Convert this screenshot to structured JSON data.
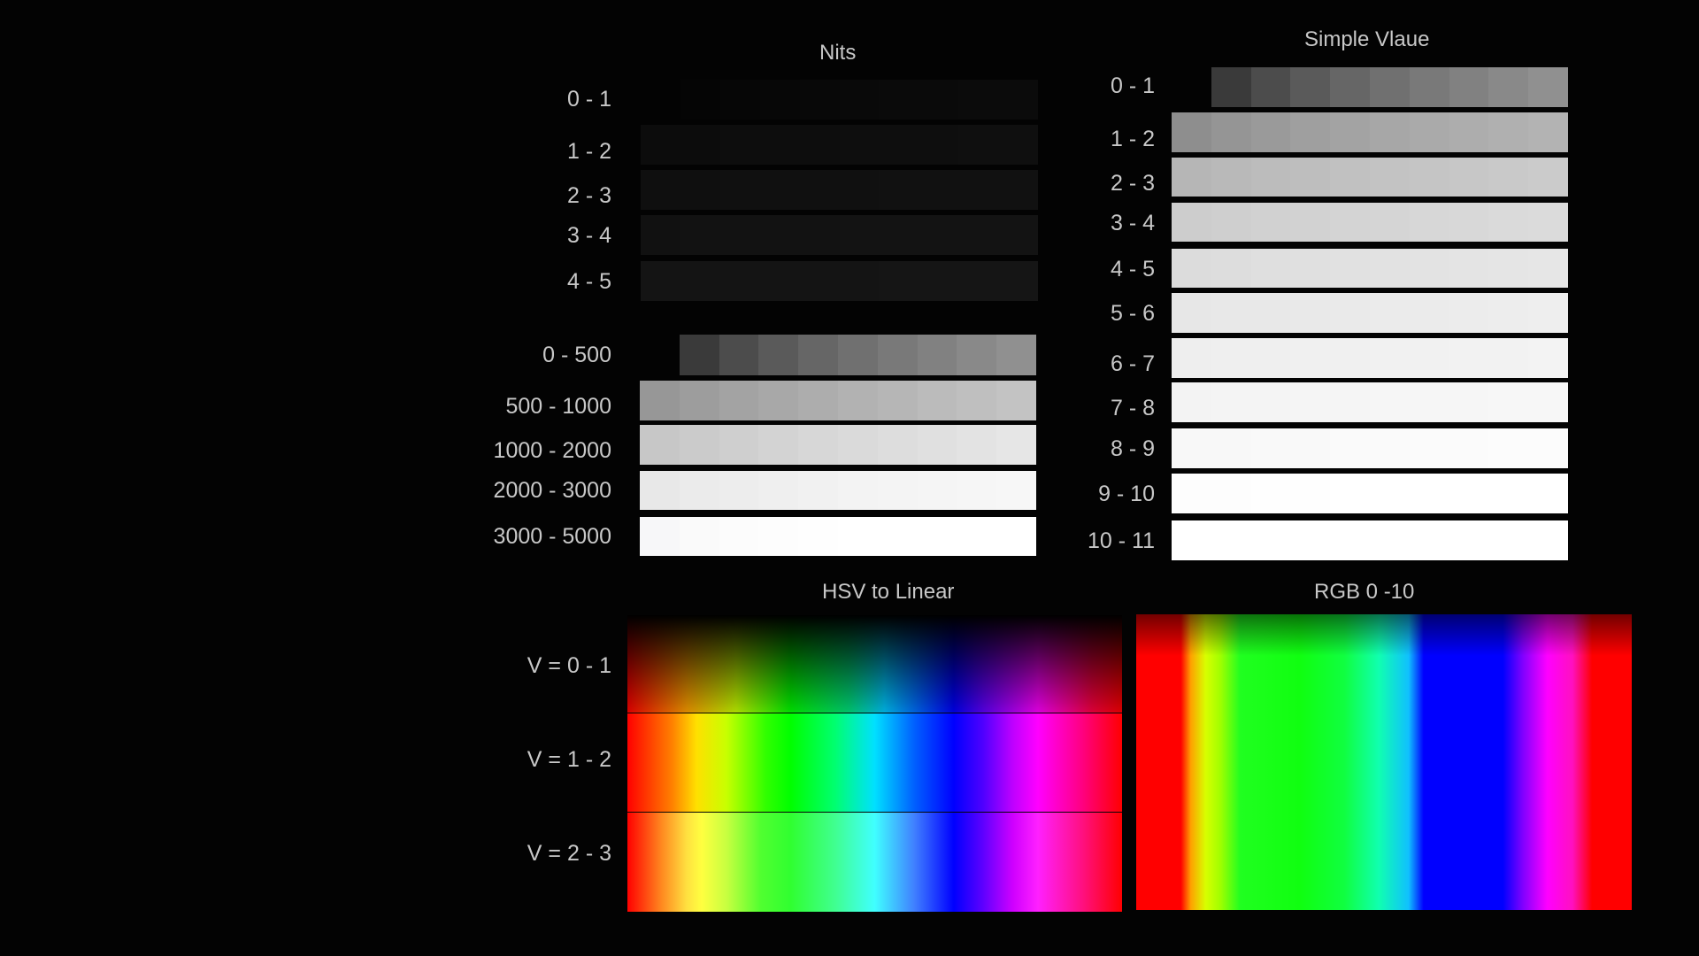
{
  "nits": {
    "title": "Nits",
    "rows": [
      {
        "label": "0 - 1",
        "cells": [
          "#030303",
          "#050505",
          "#060606",
          "#070707",
          "#080808",
          "#090909",
          "#0a0a0a",
          "#0a0a0a",
          "#0b0b0b",
          "#0b0b0b"
        ]
      },
      {
        "label": "1 - 2",
        "cells": [
          "#0c0c0c",
          "#0c0c0c",
          "#0d0d0d",
          "#0d0d0d",
          "#0d0d0d",
          "#0e0e0e",
          "#0e0e0e",
          "#0e0e0e",
          "#0f0f0f",
          "#0f0f0f"
        ]
      },
      {
        "label": "2 - 3",
        "cells": [
          "#0f0f0f",
          "#0f0f0f",
          "#101010",
          "#101010",
          "#101010",
          "#101010",
          "#111111",
          "#111111",
          "#111111",
          "#111111"
        ]
      },
      {
        "label": "3 - 4",
        "cells": [
          "#111111",
          "#121212",
          "#121212",
          "#121212",
          "#121212",
          "#131313",
          "#131313",
          "#131313",
          "#131313",
          "#131313"
        ]
      },
      {
        "label": "4 - 5",
        "cells": [
          "#141414",
          "#141414",
          "#141414",
          "#141414",
          "#141414",
          "#141414",
          "#151515",
          "#151515",
          "#151515",
          "#151515"
        ]
      },
      {
        "label": "0 - 500",
        "cells": [
          "#030303",
          "#3a3a3a",
          "#4c4c4c",
          "#5a5a5a",
          "#666666",
          "#707070",
          "#797979",
          "#818181",
          "#898989",
          "#909090"
        ]
      },
      {
        "label": "500 - 1000",
        "cells": [
          "#979797",
          "#9d9d9d",
          "#a3a3a3",
          "#a8a8a8",
          "#adadad",
          "#b2b2b2",
          "#b6b6b6",
          "#bbbbbb",
          "#bfbfbf",
          "#c3c3c3"
        ]
      },
      {
        "label": "1000 - 2000",
        "cells": [
          "#c7c7c7",
          "#cbcbcb",
          "#cfcfcf",
          "#d3d3d3",
          "#d7d7d7",
          "#dadada",
          "#dddddd",
          "#e0e0e0",
          "#e3e3e3",
          "#e6e6e6"
        ]
      },
      {
        "label": "2000 - 3000",
        "cells": [
          "#e8e8e8",
          "#ebebeb",
          "#ededed",
          "#efefef",
          "#f1f1f1",
          "#f3f3f3",
          "#f4f4f4",
          "#f5f5f5",
          "#f6f6f6",
          "#f7f7f7"
        ]
      },
      {
        "label": "3000 - 5000",
        "cells": [
          "#f7f7f9",
          "#fafafa",
          "#fcfcfc",
          "#fdfdfd",
          "#fefefe",
          "#ffffff",
          "#ffffff",
          "#ffffff",
          "#ffffff",
          "#ffffff"
        ]
      }
    ]
  },
  "simple_value": {
    "title": "Simple Vlaue",
    "rows": [
      {
        "label": "0 - 1",
        "cells": [
          "#030303",
          "#3a3a3a",
          "#4c4c4c",
          "#5a5a5a",
          "#666666",
          "#707070",
          "#797979",
          "#818181",
          "#898989",
          "#909090"
        ]
      },
      {
        "label": "1 - 2",
        "cells": [
          "#8e8e8e",
          "#959595",
          "#9a9a9a",
          "#9f9f9f",
          "#a3a3a3",
          "#a7a7a7",
          "#aaaaaa",
          "#adadad",
          "#b0b0b0",
          "#b3b3b3"
        ]
      },
      {
        "label": "2 - 3",
        "cells": [
          "#b6b6b6",
          "#b9b9b9",
          "#bcbcbc",
          "#bebebe",
          "#c1c1c1",
          "#c3c3c3",
          "#c5c5c5",
          "#c7c7c7",
          "#c9c9c9",
          "#cbcbcb"
        ]
      },
      {
        "label": "3 - 4",
        "cells": [
          "#cdcdcd",
          "#cfcfcf",
          "#d1d1d1",
          "#d2d2d2",
          "#d4d4d4",
          "#d5d5d5",
          "#d7d7d7",
          "#d8d8d8",
          "#dadada",
          "#dbdbdb"
        ]
      },
      {
        "label": "4 - 5",
        "cells": [
          "#dcdcdc",
          "#dddddd",
          "#dfdfdf",
          "#e0e0e0",
          "#e1e1e1",
          "#e2e2e2",
          "#e3e3e3",
          "#e4e4e4",
          "#e5e5e5",
          "#e6e6e6"
        ]
      },
      {
        "label": "5 - 6",
        "cells": [
          "#e7e7e7",
          "#e8e8e8",
          "#e8e8e8",
          "#e9e9e9",
          "#eaeaea",
          "#ebebeb",
          "#ebebeb",
          "#ececec",
          "#ededed",
          "#eeeeee"
        ]
      },
      {
        "label": "6 - 7",
        "cells": [
          "#eeeeee",
          "#efefef",
          "#efefef",
          "#f0f0f0",
          "#f0f0f0",
          "#f1f1f1",
          "#f1f1f1",
          "#f2f2f2",
          "#f2f2f2",
          "#f3f3f3"
        ]
      },
      {
        "label": "7 - 8",
        "cells": [
          "#f3f3f3",
          "#f4f4f4",
          "#f4f4f4",
          "#f5f5f5",
          "#f5f5f5",
          "#f6f6f6",
          "#f6f6f6",
          "#f6f6f6",
          "#f7f7f7",
          "#f7f7f7"
        ]
      },
      {
        "label": "8 - 9",
        "cells": [
          "#f8f8f8",
          "#f8f8f8",
          "#f9f9f9",
          "#f9f9f9",
          "#fafafa",
          "#fafafa",
          "#fbfbfb",
          "#fbfbfb",
          "#fcfcfc",
          "#fcfcfc"
        ]
      },
      {
        "label": "9 - 10",
        "cells": [
          "#fdfdfd",
          "#fdfdfd",
          "#fefefe",
          "#fefefe",
          "#ffffff",
          "#ffffff",
          "#ffffff",
          "#ffffff",
          "#ffffff",
          "#ffffff"
        ]
      },
      {
        "label": "10 - 11",
        "cells": [
          "#ffffff",
          "#ffffff",
          "#ffffff",
          "#ffffff",
          "#ffffff",
          "#ffffff",
          "#ffffff",
          "#ffffff",
          "#ffffff",
          "#ffffff"
        ]
      }
    ]
  },
  "hsv": {
    "title": "HSV to Linear",
    "rows": [
      {
        "label": "V = 0 - 1"
      },
      {
        "label": "V =  1 - 2"
      },
      {
        "label": "V = 2 - 3"
      }
    ]
  },
  "rgb": {
    "title": "RGB 0 -10"
  }
}
